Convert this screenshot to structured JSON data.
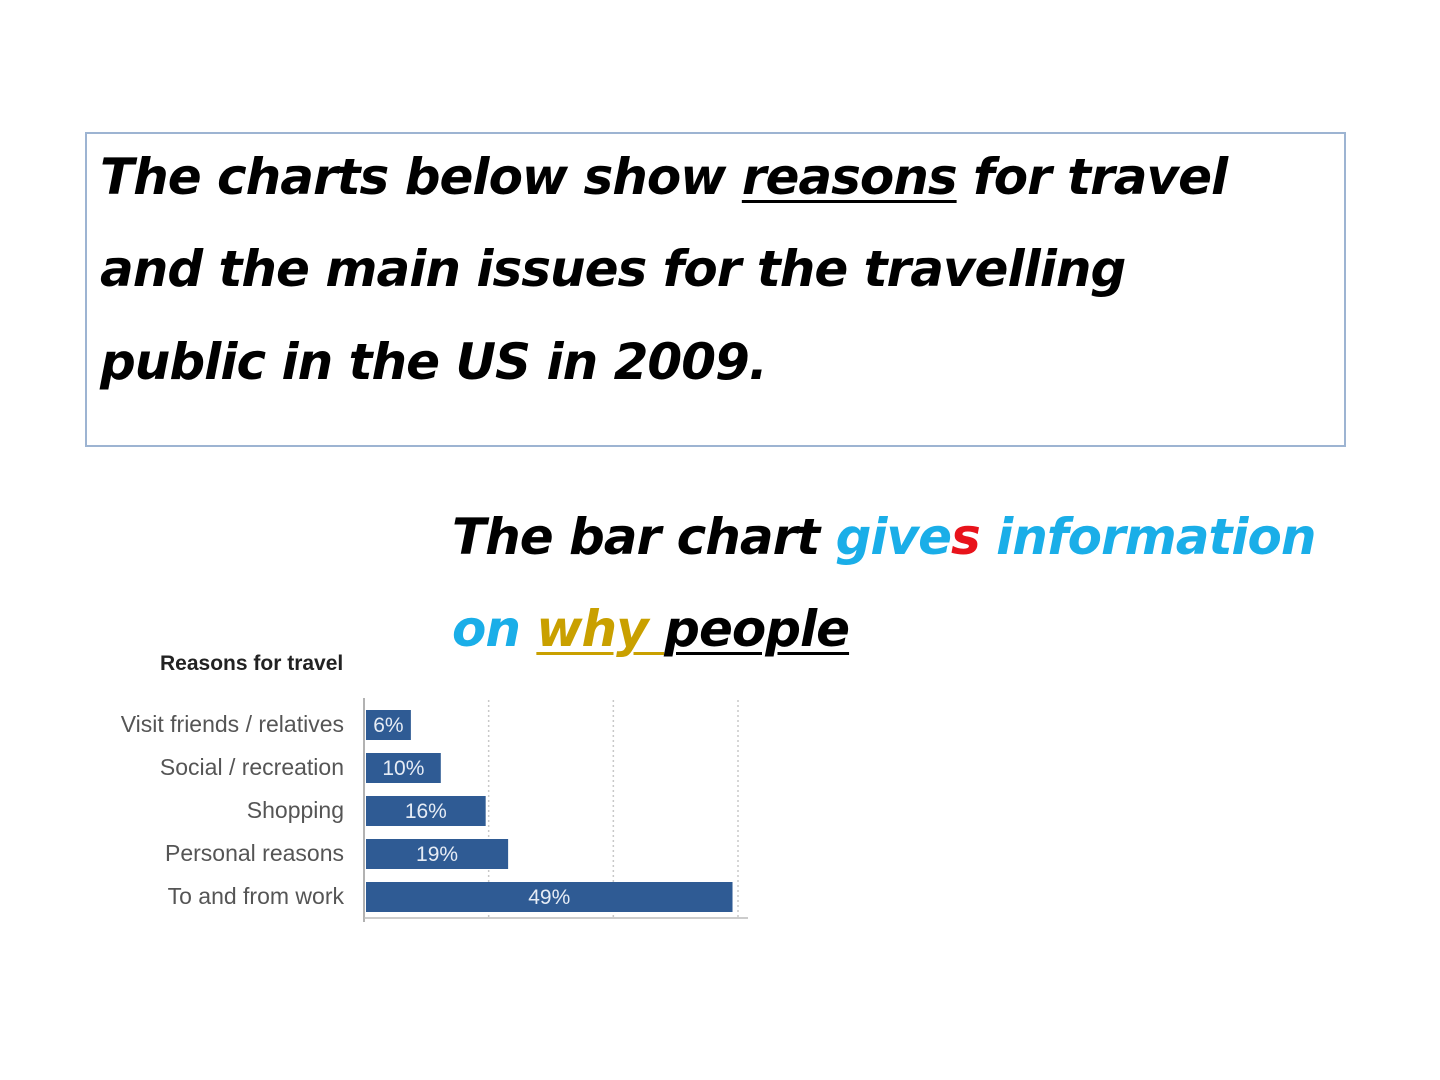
{
  "task": {
    "line1_a": "The charts below show ",
    "line1_u": "reasons",
    "line1_b": " for travel",
    "line2": "and the main issues for the travelling",
    "line3": "public in the US in 2009."
  },
  "caption": {
    "w1": "The bar chart ",
    "w2": "give",
    "w3": "s",
    "w4": " information",
    "w5": "on ",
    "w6": "why ",
    "w7": "people"
  },
  "chart_data": {
    "type": "bar",
    "orientation": "horizontal",
    "title": "Reasons for travel",
    "categories": [
      "Visit friends / relatives",
      "Social / recreation",
      "Shopping",
      "Personal reasons",
      "To and from work"
    ],
    "values": [
      6,
      10,
      16,
      19,
      49
    ],
    "value_labels": [
      "6%",
      "10%",
      "16%",
      "19%",
      "49%"
    ],
    "xlim": [
      0,
      50
    ],
    "grid": true,
    "bar_color": "#2f5b94"
  }
}
